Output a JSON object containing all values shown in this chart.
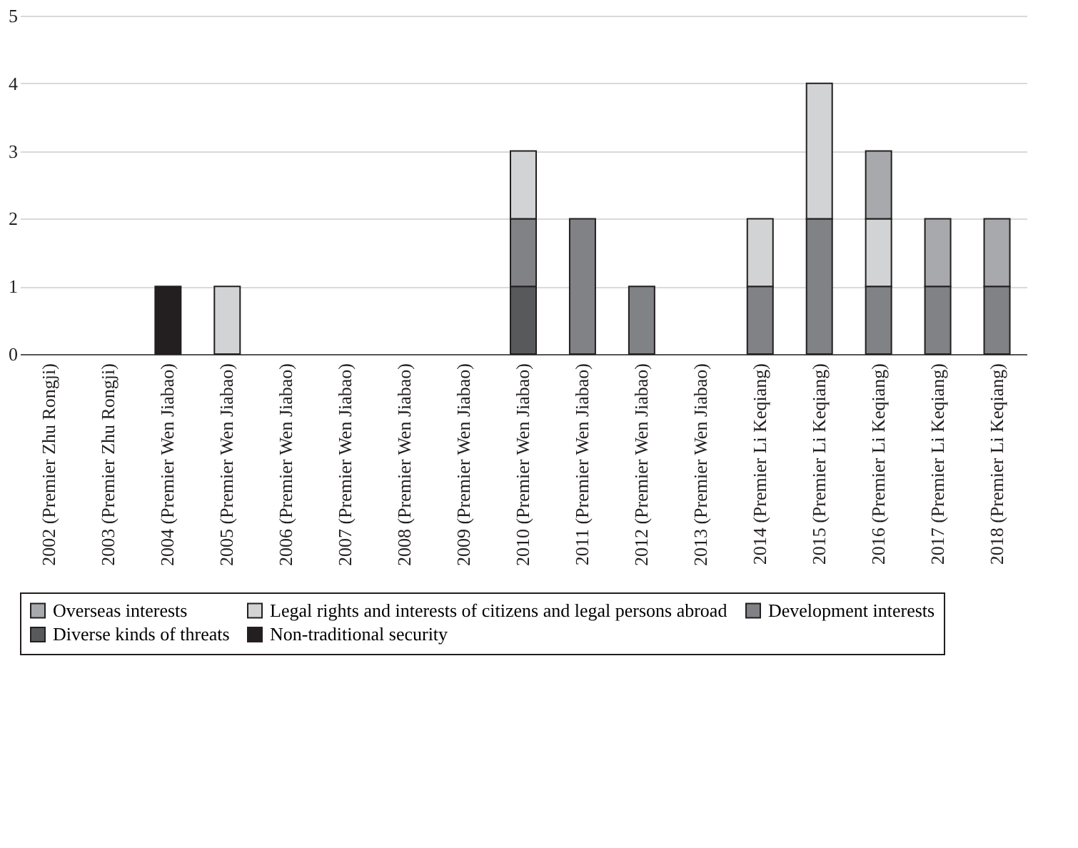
{
  "chart_data": {
    "type": "bar",
    "stacked": true,
    "categories": [
      "2002 (Premier Zhu Rongji)",
      "2003 (Premier Zhu Rongji)",
      "2004 (Premier Wen Jiabao)",
      "2005 (Premier Wen Jiabao)",
      "2006 (Premier Wen Jiabao)",
      "2007 (Premier Wen Jiabao)",
      "2008 (Premier Wen Jiabao)",
      "2009 (Premier Wen Jiabao)",
      "2010 (Premier Wen Jiabao)",
      "2011 (Premier Wen Jiabao)",
      "2012 (Premier Wen Jiabao)",
      "2013 (Premier Wen Jiabao)",
      "2014 (Premier Li Keqiang)",
      "2015 (Premier Li Keqiang)",
      "2016 (Premier Li Keqiang)",
      "2017 (Premier Li Keqiang)",
      "2018 (Premier Li Keqiang)"
    ],
    "series": [
      {
        "name": "Non-traditional security",
        "color": "#231f20",
        "values": [
          0,
          0,
          1,
          0,
          0,
          0,
          0,
          0,
          0,
          0,
          0,
          0,
          0,
          0,
          0,
          0,
          0
        ]
      },
      {
        "name": "Diverse kinds of threats",
        "color": "#58595b",
        "values": [
          0,
          0,
          0,
          0,
          0,
          0,
          0,
          0,
          1,
          0,
          0,
          0,
          0,
          0,
          0,
          0,
          0
        ]
      },
      {
        "name": "Development interests",
        "color": "#808285",
        "values": [
          0,
          0,
          0,
          0,
          0,
          0,
          0,
          0,
          1,
          2,
          1,
          0,
          1,
          2,
          1,
          1,
          1
        ]
      },
      {
        "name": "Legal rights and interests of citizens and legal persons abroad",
        "color": "#d1d3d4",
        "values": [
          0,
          0,
          0,
          1,
          0,
          0,
          0,
          0,
          1,
          0,
          0,
          0,
          1,
          2,
          1,
          0,
          0
        ]
      },
      {
        "name": "Overseas interests",
        "color": "#a7a9ac",
        "values": [
          0,
          0,
          0,
          0,
          0,
          0,
          0,
          0,
          0,
          0,
          0,
          0,
          0,
          0,
          1,
          1,
          1
        ]
      }
    ],
    "ylim": [
      0,
      5
    ],
    "yticks": [
      0,
      1,
      2,
      3,
      4,
      5
    ],
    "grid": "y",
    "legend": "bottom"
  }
}
